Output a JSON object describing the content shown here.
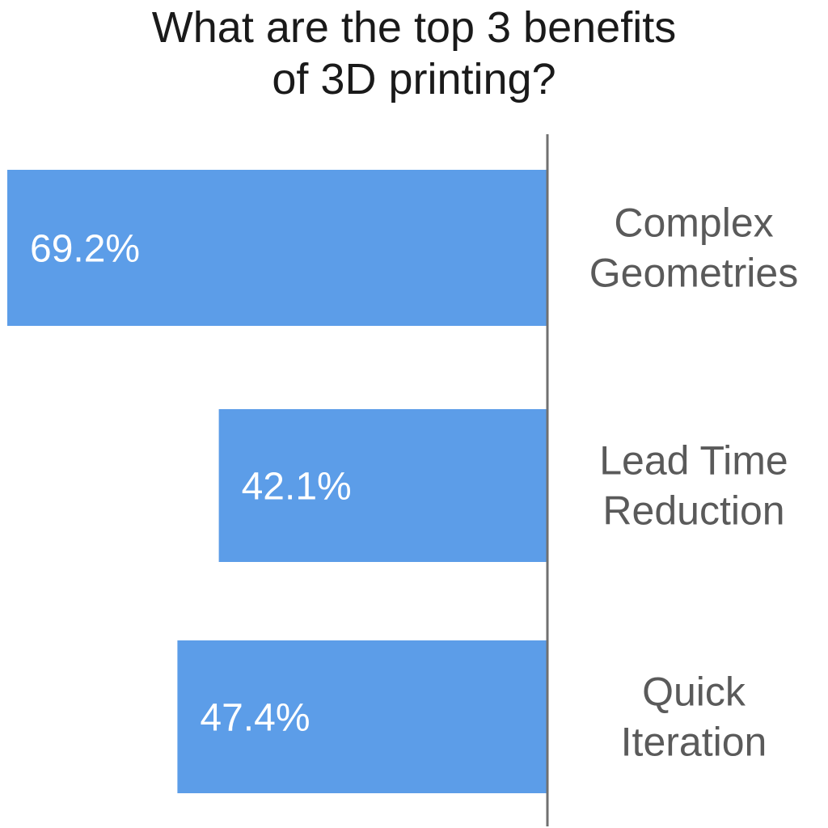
{
  "chart_data": {
    "type": "bar",
    "orientation": "horizontal",
    "title_lines": [
      "What are the top 3 benefits",
      "of 3D printing?"
    ],
    "categories": [
      [
        "Complex",
        "Geometries"
      ],
      [
        "Lead Time",
        "Reduction"
      ],
      [
        "Quick",
        "Iteration"
      ]
    ],
    "values": [
      69.2,
      42.1,
      47.4
    ],
    "value_labels": [
      "69.2%",
      "42.1%",
      "47.4%"
    ],
    "xlim": [
      0,
      70
    ],
    "bar_direction": "leftward from baseline",
    "label_position": "right of baseline",
    "grid": false,
    "legend": "none",
    "colors": {
      "bar": "#5c9de8",
      "value_label": "#ffffff",
      "category_label": "#5a5a5a",
      "baseline": "#707070",
      "title": "#1a1a1a"
    }
  }
}
